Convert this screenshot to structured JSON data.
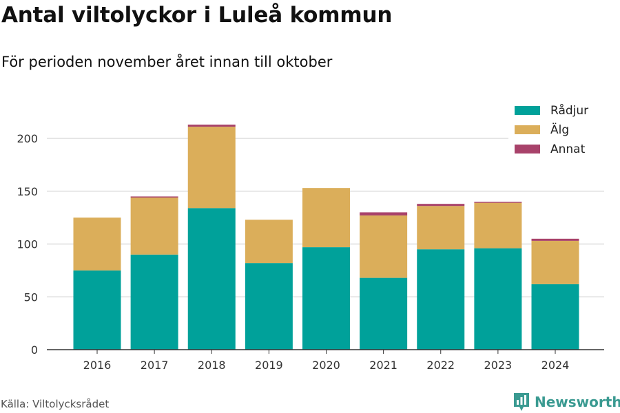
{
  "title": "Antal viltolyckor i Luleå kommun",
  "subtitle": "För perioden november året innan till oktober",
  "source": "Källa: Viltolycksrådet",
  "brand": {
    "name": "Newsworthy",
    "icon": "newsworthy-logo-icon",
    "color": "#3a9a91"
  },
  "chart_data": {
    "type": "bar",
    "stacked": true,
    "categories": [
      "2016",
      "2017",
      "2018",
      "2019",
      "2020",
      "2021",
      "2022",
      "2023",
      "2024"
    ],
    "series": [
      {
        "name": "Rådjur",
        "color": "#00a19a",
        "values": [
          75,
          90,
          134,
          82,
          97,
          68,
          95,
          96,
          62
        ]
      },
      {
        "name": "Älg",
        "color": "#dbae5a",
        "values": [
          50,
          54,
          77,
          41,
          56,
          59,
          41,
          43,
          41
        ]
      },
      {
        "name": "Annat",
        "color": "#a8426a",
        "values": [
          0,
          1,
          2,
          0,
          0,
          3,
          2,
          1,
          2
        ]
      }
    ],
    "ylim": [
      0,
      220
    ],
    "yticks": [
      0,
      50,
      100,
      150,
      200
    ],
    "grid": true,
    "legend_position": "top-right",
    "xlabel": "",
    "ylabel": ""
  }
}
